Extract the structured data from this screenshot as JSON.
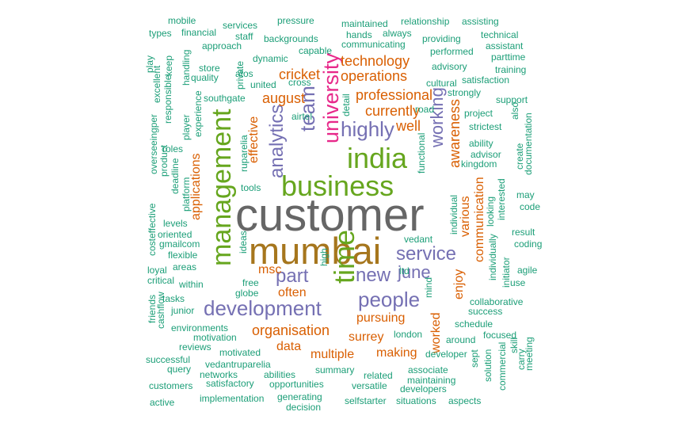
{
  "colors": {
    "teal": "#1b9e77",
    "orange": "#d95f02",
    "purple": "#7570b3",
    "pink": "#e7298a",
    "green": "#66a61e",
    "gold": "#a6761d",
    "gray": "#666666"
  },
  "words": [
    {
      "text": "customer",
      "color": "gray"
    },
    {
      "text": "mumbai",
      "color": "gold"
    },
    {
      "text": "management",
      "color": "green"
    },
    {
      "text": "business",
      "color": "green"
    },
    {
      "text": "india",
      "color": "green"
    },
    {
      "text": "university",
      "color": "pink"
    },
    {
      "text": "time",
      "color": "green"
    },
    {
      "text": "development",
      "color": "purple"
    },
    {
      "text": "team",
      "color": "purple"
    },
    {
      "text": "analytics",
      "color": "purple"
    },
    {
      "text": "highly",
      "color": "purple"
    },
    {
      "text": "service",
      "color": "purple"
    },
    {
      "text": "people",
      "color": "purple"
    },
    {
      "text": "new",
      "color": "purple"
    },
    {
      "text": "part",
      "color": "purple"
    },
    {
      "text": "june",
      "color": "purple"
    },
    {
      "text": "working",
      "color": "purple"
    },
    {
      "text": "technology",
      "color": "orange"
    },
    {
      "text": "operations",
      "color": "orange"
    },
    {
      "text": "professional",
      "color": "orange"
    },
    {
      "text": "currently",
      "color": "orange"
    },
    {
      "text": "cricket",
      "color": "orange"
    },
    {
      "text": "august",
      "color": "orange"
    },
    {
      "text": "well",
      "color": "orange"
    },
    {
      "text": "awareness",
      "color": "orange"
    },
    {
      "text": "applications",
      "color": "orange"
    },
    {
      "text": "effective",
      "color": "orange"
    },
    {
      "text": "communication",
      "color": "orange"
    },
    {
      "text": "various",
      "color": "orange"
    },
    {
      "text": "enjoy",
      "color": "orange"
    },
    {
      "text": "msc",
      "color": "orange"
    },
    {
      "text": "often",
      "color": "orange"
    },
    {
      "text": "organisation",
      "color": "orange"
    },
    {
      "text": "pursuing",
      "color": "orange"
    },
    {
      "text": "data",
      "color": "orange"
    },
    {
      "text": "surrey",
      "color": "orange"
    },
    {
      "text": "multiple",
      "color": "orange"
    },
    {
      "text": "making",
      "color": "orange"
    },
    {
      "text": "worked",
      "color": "orange"
    },
    {
      "text": "mobile",
      "color": "teal"
    },
    {
      "text": "services",
      "color": "teal"
    },
    {
      "text": "pressure",
      "color": "teal"
    },
    {
      "text": "maintained",
      "color": "teal"
    },
    {
      "text": "relationship",
      "color": "teal"
    },
    {
      "text": "assisting",
      "color": "teal"
    },
    {
      "text": "types",
      "color": "teal"
    },
    {
      "text": "financial",
      "color": "teal"
    },
    {
      "text": "staff",
      "color": "teal"
    },
    {
      "text": "backgrounds",
      "color": "teal"
    },
    {
      "text": "hands",
      "color": "teal"
    },
    {
      "text": "always",
      "color": "teal"
    },
    {
      "text": "providing",
      "color": "teal"
    },
    {
      "text": "technical",
      "color": "teal"
    },
    {
      "text": "approach",
      "color": "teal"
    },
    {
      "text": "capable",
      "color": "teal"
    },
    {
      "text": "communicating",
      "color": "teal"
    },
    {
      "text": "performed",
      "color": "teal"
    },
    {
      "text": "assistant",
      "color": "teal"
    },
    {
      "text": "dynamic",
      "color": "teal"
    },
    {
      "text": "parttime",
      "color": "teal"
    },
    {
      "text": "store",
      "color": "teal"
    },
    {
      "text": "atos",
      "color": "teal"
    },
    {
      "text": "advisory",
      "color": "teal"
    },
    {
      "text": "training",
      "color": "teal"
    },
    {
      "text": "quality",
      "color": "teal"
    },
    {
      "text": "united",
      "color": "teal"
    },
    {
      "text": "cross",
      "color": "teal"
    },
    {
      "text": "cultural",
      "color": "teal"
    },
    {
      "text": "satisfaction",
      "color": "teal"
    },
    {
      "text": "strongly",
      "color": "teal"
    },
    {
      "text": "southgate",
      "color": "teal"
    },
    {
      "text": "support",
      "color": "teal"
    },
    {
      "text": "road",
      "color": "teal"
    },
    {
      "text": "project",
      "color": "teal"
    },
    {
      "text": "airtel",
      "color": "teal"
    },
    {
      "text": "strictest",
      "color": "teal"
    },
    {
      "text": "ability",
      "color": "teal"
    },
    {
      "text": "advisor",
      "color": "teal"
    },
    {
      "text": "kingdom",
      "color": "teal"
    },
    {
      "text": "roles",
      "color": "teal"
    },
    {
      "text": "tools",
      "color": "teal"
    },
    {
      "text": "may",
      "color": "teal"
    },
    {
      "text": "code",
      "color": "teal"
    },
    {
      "text": "levels",
      "color": "teal"
    },
    {
      "text": "oriented",
      "color": "teal"
    },
    {
      "text": "gmailcom",
      "color": "teal"
    },
    {
      "text": "vedant",
      "color": "teal"
    },
    {
      "text": "flexible",
      "color": "teal"
    },
    {
      "text": "result",
      "color": "teal"
    },
    {
      "text": "coding",
      "color": "teal"
    },
    {
      "text": "loyal",
      "color": "teal"
    },
    {
      "text": "areas",
      "color": "teal"
    },
    {
      "text": "ltd",
      "color": "teal"
    },
    {
      "text": "agile",
      "color": "teal"
    },
    {
      "text": "critical",
      "color": "teal"
    },
    {
      "text": "within",
      "color": "teal"
    },
    {
      "text": "free",
      "color": "teal"
    },
    {
      "text": "use",
      "color": "teal"
    },
    {
      "text": "tasks",
      "color": "teal"
    },
    {
      "text": "globe",
      "color": "teal"
    },
    {
      "text": "junior",
      "color": "teal"
    },
    {
      "text": "collaborative",
      "color": "teal"
    },
    {
      "text": "success",
      "color": "teal"
    },
    {
      "text": "environments",
      "color": "teal"
    },
    {
      "text": "schedule",
      "color": "teal"
    },
    {
      "text": "around",
      "color": "teal"
    },
    {
      "text": "focused",
      "color": "teal"
    },
    {
      "text": "motivation",
      "color": "teal"
    },
    {
      "text": "london",
      "color": "teal"
    },
    {
      "text": "reviews",
      "color": "teal"
    },
    {
      "text": "developer",
      "color": "teal"
    },
    {
      "text": "motivated",
      "color": "teal"
    },
    {
      "text": "successful",
      "color": "teal"
    },
    {
      "text": "vedantruparelia",
      "color": "teal"
    },
    {
      "text": "associate",
      "color": "teal"
    },
    {
      "text": "query",
      "color": "teal"
    },
    {
      "text": "networks",
      "color": "teal"
    },
    {
      "text": "abilities",
      "color": "teal"
    },
    {
      "text": "summary",
      "color": "teal"
    },
    {
      "text": "related",
      "color": "teal"
    },
    {
      "text": "maintaining",
      "color": "teal"
    },
    {
      "text": "customers",
      "color": "teal"
    },
    {
      "text": "satisfactory",
      "color": "teal"
    },
    {
      "text": "opportunities",
      "color": "teal"
    },
    {
      "text": "versatile",
      "color": "teal"
    },
    {
      "text": "developers",
      "color": "teal"
    },
    {
      "text": "generating",
      "color": "teal"
    },
    {
      "text": "active",
      "color": "teal"
    },
    {
      "text": "implementation",
      "color": "teal"
    },
    {
      "text": "selfstarter",
      "color": "teal"
    },
    {
      "text": "situations",
      "color": "teal"
    },
    {
      "text": "aspects",
      "color": "teal"
    },
    {
      "text": "decision",
      "color": "teal"
    },
    {
      "text": "play",
      "color": "teal"
    },
    {
      "text": "keep",
      "color": "teal"
    },
    {
      "text": "excellent",
      "color": "teal"
    },
    {
      "text": "handling",
      "color": "teal"
    },
    {
      "text": "responsible",
      "color": "teal"
    },
    {
      "text": "private",
      "color": "teal"
    },
    {
      "text": "player",
      "color": "teal"
    },
    {
      "text": "experience",
      "color": "teal"
    },
    {
      "text": "overseeingper",
      "color": "teal"
    },
    {
      "text": "product",
      "color": "teal"
    },
    {
      "text": "deadline",
      "color": "teal"
    },
    {
      "text": "platform",
      "color": "teal"
    },
    {
      "text": "costeffective",
      "color": "teal"
    },
    {
      "text": "friends",
      "color": "teal"
    },
    {
      "text": "cashflow",
      "color": "teal"
    },
    {
      "text": "ruparelia",
      "color": "teal"
    },
    {
      "text": "ideas",
      "color": "teal"
    },
    {
      "text": "high",
      "color": "teal"
    },
    {
      "text": "detail",
      "color": "teal"
    },
    {
      "text": "functional",
      "color": "teal"
    },
    {
      "text": "individual",
      "color": "teal"
    },
    {
      "text": "mind",
      "color": "teal"
    },
    {
      "text": "looking",
      "color": "teal"
    },
    {
      "text": "individually",
      "color": "teal"
    },
    {
      "text": "interested",
      "color": "teal"
    },
    {
      "text": "initiator",
      "color": "teal"
    },
    {
      "text": "also",
      "color": "teal"
    },
    {
      "text": "create",
      "color": "teal"
    },
    {
      "text": "documentation",
      "color": "teal"
    },
    {
      "text": "sept",
      "color": "teal"
    },
    {
      "text": "solution",
      "color": "teal"
    },
    {
      "text": "commercial",
      "color": "teal"
    },
    {
      "text": "skill",
      "color": "teal"
    },
    {
      "text": "carry",
      "color": "teal"
    },
    {
      "text": "meeting",
      "color": "teal"
    }
  ]
}
